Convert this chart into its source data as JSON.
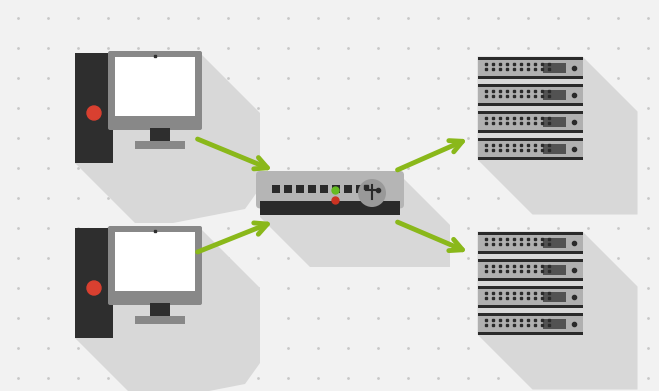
{
  "bg_color": "#f2f2f2",
  "dot_color": "#c8c8c8",
  "shadow_color": "#d8d8d8",
  "arrow_color": "#8ab81a",
  "computer_dark": "#2e2e2e",
  "computer_frame": "#888888",
  "computer_screen": "#ffffff",
  "computer_red": "#d94030",
  "server_body": "#b0b0b0",
  "server_dark": "#2a2a2a",
  "server_frame": "#888888",
  "lb_body": "#b5b5b5",
  "lb_dark": "#2a2a2a",
  "lb_green": "#66bb22",
  "lb_red": "#cc3322",
  "figsize": [
    6.59,
    3.91
  ],
  "dpi": 100
}
